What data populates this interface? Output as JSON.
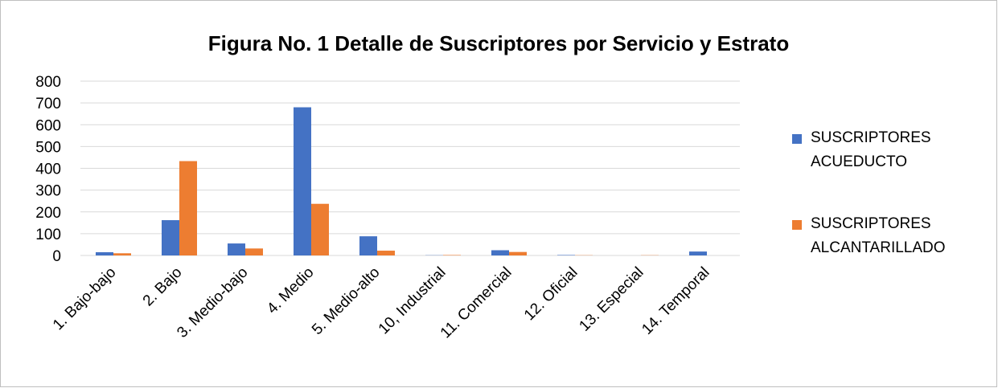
{
  "chart_data": {
    "type": "bar",
    "title": "Figura No. 1 Detalle de Suscriptores por Servicio y Estrato",
    "categories": [
      "1. Bajo-bajo",
      "2. Bajo",
      "3. Medio-bajo",
      "4. Medio",
      "5. Medio-alto",
      "10, Industrial",
      "11. Comercial",
      "12. Oficial",
      "13. Especial",
      "14. Temporal"
    ],
    "series": [
      {
        "name": "SUSCRIPTORES ACUEDUCTO",
        "color": "#4472c4",
        "values": [
          15,
          162,
          55,
          680,
          88,
          1,
          24,
          2,
          0,
          18
        ]
      },
      {
        "name": "SUSCRIPTORES ALCANTARILLADO",
        "color": "#ed7d31",
        "values": [
          10,
          433,
          32,
          237,
          22,
          2,
          16,
          1,
          1,
          0
        ]
      }
    ],
    "ylim": [
      0,
      800
    ],
    "yticks": [
      0,
      100,
      200,
      300,
      400,
      500,
      600,
      700,
      800
    ],
    "grid": true,
    "legend": "right"
  }
}
